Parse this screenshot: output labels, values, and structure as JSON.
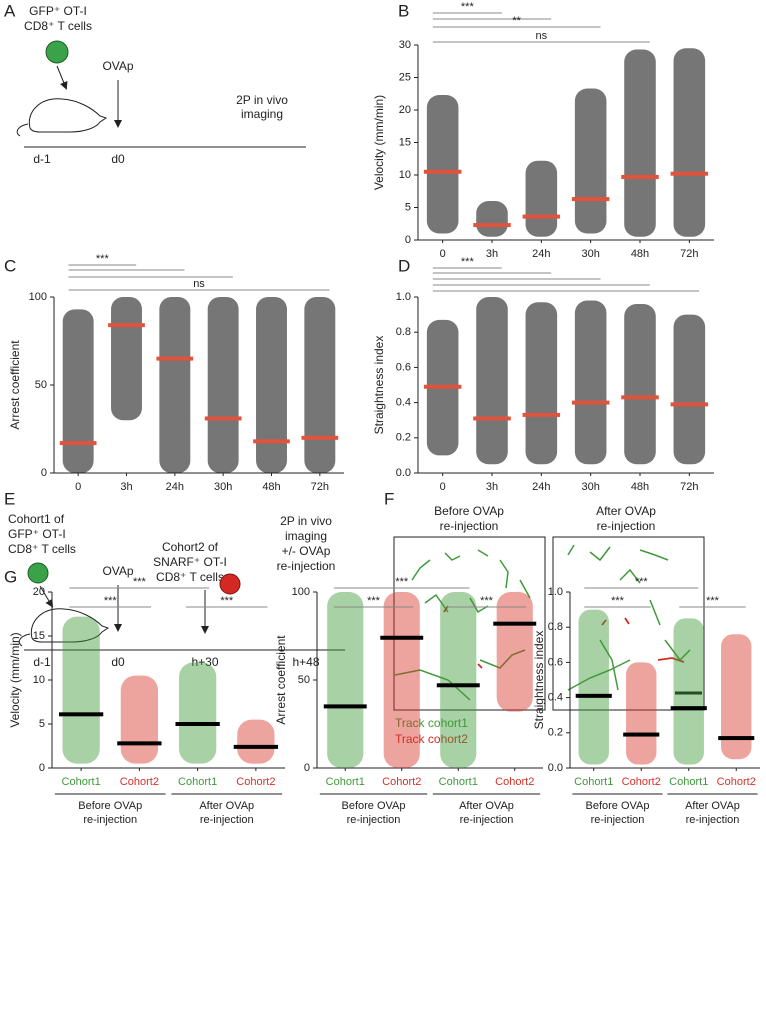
{
  "panel_labels": [
    "A",
    "B",
    "C",
    "D",
    "E",
    "F",
    "G"
  ],
  "diagram_a": {
    "cell": [
      "GFP⁺ OT-I",
      "CD8⁺ T cells"
    ],
    "injection": "OVAp",
    "imaging": [
      "2P in vivo",
      "imaging"
    ],
    "timeline": [
      "d-1",
      "d0"
    ]
  },
  "diagram_e": {
    "cell1": [
      "Cohort1 of",
      "GFP⁺ OT-I",
      "CD8⁺ T cells"
    ],
    "injection": "OVAp",
    "cell2": [
      "Cohort2 of",
      "SNARF⁺ OT-I",
      "CD8⁺ T cells"
    ],
    "imaging": [
      "2P in vivo",
      "imaging",
      "+/- OVAp",
      "re-injection"
    ],
    "timeline": [
      "d-1",
      "d0",
      "h+30",
      "h+48"
    ]
  },
  "panel_f": {
    "titles": [
      [
        "Before OVAp",
        "re-injection"
      ],
      [
        "After OVAp",
        "re-injection"
      ]
    ],
    "legend": [
      "Track cohort1",
      "Track cohort2"
    ]
  },
  "chart_data": [
    {
      "type": "dotplot",
      "ylabel": "Velocity (mm/min)",
      "categories": [
        "0",
        "3h",
        "24h",
        "30h",
        "48h",
        "72h"
      ],
      "values": [
        10.5,
        2.3,
        3.6,
        6.3,
        9.7,
        10.2
      ],
      "ranges": [
        [
          1,
          22.3
        ],
        [
          0.5,
          6
        ],
        [
          0.5,
          12.2
        ],
        [
          1,
          23.3
        ],
        [
          0.5,
          29.3
        ],
        [
          0.5,
          29.5
        ]
      ],
      "ylim": [
        0,
        30
      ],
      "yticks": [
        0,
        5,
        10,
        15,
        20,
        25,
        30
      ],
      "color": "#1a1a1a",
      "median_color": "#e0533d",
      "brackets": [
        "***",
        "**",
        "ns"
      ]
    },
    {
      "type": "dotplot",
      "ylabel": "Arrest coefficient",
      "categories": [
        "0",
        "3h",
        "24h",
        "30h",
        "48h",
        "72h"
      ],
      "values": [
        17,
        84,
        65,
        31,
        18,
        20
      ],
      "ranges": [
        [
          0,
          93
        ],
        [
          30,
          100
        ],
        [
          0,
          100
        ],
        [
          0,
          100
        ],
        [
          0,
          100
        ],
        [
          0,
          100
        ]
      ],
      "ylim": [
        0,
        100
      ],
      "yticks": [
        0,
        50,
        100
      ],
      "color": "#1a1a1a",
      "median_color": "#e0533d",
      "brackets": [
        "***",
        "ns"
      ]
    },
    {
      "type": "dotplot",
      "ylabel": "Straightness index",
      "categories": [
        "0",
        "3h",
        "24h",
        "30h",
        "48h",
        "72h"
      ],
      "values": [
        0.49,
        0.31,
        0.33,
        0.4,
        0.43,
        0.39
      ],
      "ranges": [
        [
          0.1,
          0.87
        ],
        [
          0.05,
          1
        ],
        [
          0.05,
          0.97
        ],
        [
          0.05,
          0.98
        ],
        [
          0.05,
          0.96
        ],
        [
          0.05,
          0.9
        ]
      ],
      "ylim": [
        0,
        1
      ],
      "yticks": [
        {
          "value": 0,
          "label": "0.0"
        },
        0.2,
        0.4,
        0.6,
        0.8,
        {
          "value": 1,
          "label": "1.0"
        }
      ],
      "color": "#1a1a1a",
      "median_color": "#e0533d",
      "brackets": [
        "***"
      ]
    },
    {
      "type": "dotplot",
      "ylabel": "Velocity (mm/min)",
      "categories": [
        "Cohort1",
        "Cohort2",
        "Cohort1",
        "Cohort2"
      ],
      "values": [
        6.1,
        2.8,
        5.0,
        2.4
      ],
      "ranges": [
        [
          0.5,
          17.2
        ],
        [
          0.5,
          10.5
        ],
        [
          0.5,
          12
        ],
        [
          0.5,
          5.5
        ]
      ],
      "ylim": [
        0,
        20
      ],
      "yticks": [
        0,
        5,
        10,
        15,
        20
      ],
      "colors": [
        "#3f9a3a",
        "#d63228",
        "#3f9a3a",
        "#d63228"
      ],
      "median_color": "#000000",
      "groups": [
        [
          "Before OVAp",
          "re-injection"
        ],
        [
          "After OVAp",
          "re-injection"
        ]
      ],
      "brackets": [
        "***",
        "***",
        "***"
      ]
    },
    {
      "type": "dotplot",
      "ylabel": "Arrest coefficient",
      "categories": [
        "Cohort1",
        "Cohort2",
        "Cohort1",
        "Cohort2"
      ],
      "values": [
        35,
        74,
        47,
        82
      ],
      "ranges": [
        [
          0,
          100
        ],
        [
          0,
          100
        ],
        [
          0,
          100
        ],
        [
          32,
          100
        ]
      ],
      "ylim": [
        0,
        100
      ],
      "yticks": [
        0,
        50,
        100
      ],
      "colors": [
        "#3f9a3a",
        "#d63228",
        "#3f9a3a",
        "#d63228"
      ],
      "median_color": "#000000",
      "groups": [
        [
          "Before OVAp",
          "re-injection"
        ],
        [
          "After OVAp",
          "re-injection"
        ]
      ],
      "brackets": [
        "***",
        "***",
        "***"
      ]
    },
    {
      "type": "dotplot",
      "ylabel": "Straightness index",
      "categories": [
        "Cohort1",
        "Cohort2",
        "Cohort1",
        "Cohort2"
      ],
      "values": [
        0.41,
        0.19,
        0.34,
        0.17
      ],
      "ranges": [
        [
          0.02,
          0.9
        ],
        [
          0.02,
          0.6
        ],
        [
          0.02,
          0.85
        ],
        [
          0.05,
          0.76
        ]
      ],
      "ylim": [
        0,
        1
      ],
      "yticks": [
        {
          "value": 0,
          "label": "0.0"
        },
        0.2,
        0.4,
        0.6,
        0.8,
        {
          "value": 1,
          "label": "1.0"
        }
      ],
      "colors": [
        "#3f9a3a",
        "#d63228",
        "#3f9a3a",
        "#d63228"
      ],
      "median_color": "#000000",
      "groups": [
        [
          "Before OVAp",
          "re-injection"
        ],
        [
          "After OVAp",
          "re-injection"
        ]
      ],
      "brackets": [
        "***",
        "***",
        "***"
      ]
    }
  ]
}
